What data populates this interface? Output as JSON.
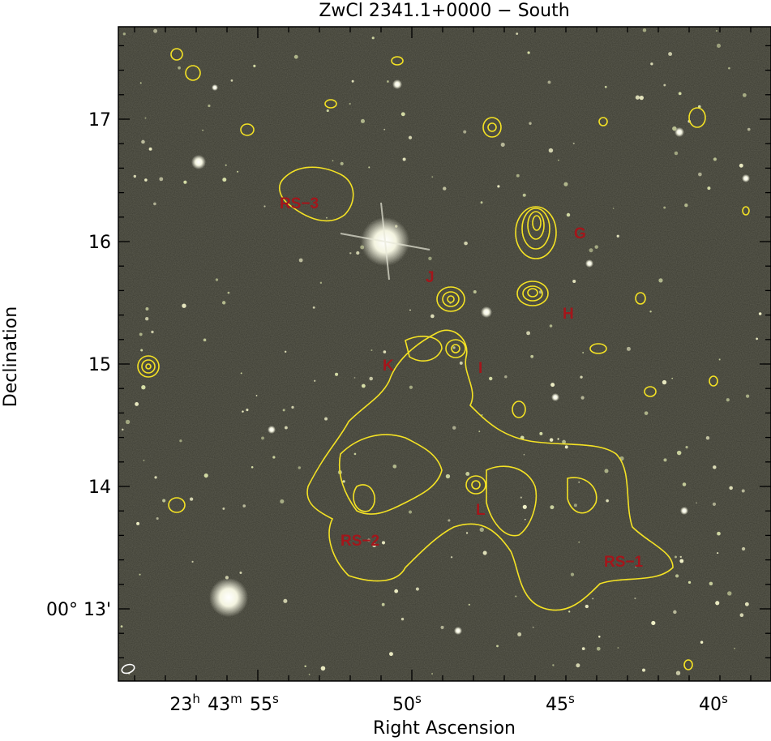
{
  "title": "ZwCl 2341.1+0000 − South",
  "x_axis": {
    "label": "Right Ascension",
    "ticks": [
      "23h 43m 55s",
      "50s",
      "45s",
      "40s"
    ]
  },
  "y_axis": {
    "label": "Declination",
    "ticks": [
      "17",
      "16",
      "15",
      "14",
      "00° 13'"
    ]
  },
  "annotations": [
    "RS−3",
    "G",
    "J",
    "H",
    "K",
    "I",
    "L",
    "RS−2",
    "RS−1"
  ]
}
